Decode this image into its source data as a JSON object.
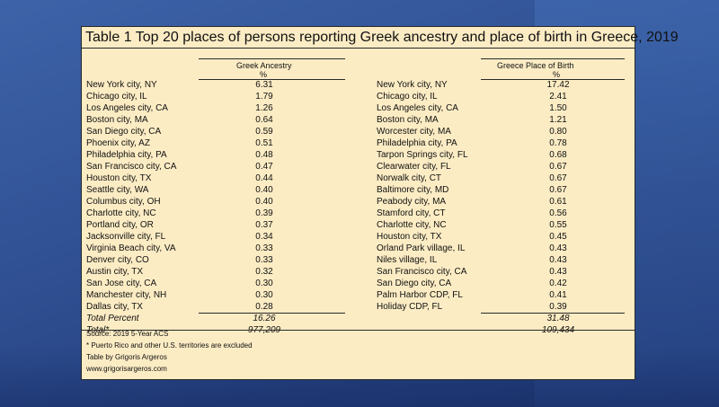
{
  "table": {
    "title": "Table 1   Top 20 places of persons reporting Greek ancestry and place of birth in Greece, 2019",
    "left_header": "Greek Ancestry",
    "left_unit": "%",
    "right_header": "Greece Place of Birth",
    "right_unit": "%",
    "rows": [
      {
        "left_place": "New York city, NY",
        "left_value": "6.31",
        "right_place": "New York city, NY",
        "right_value": "17.42"
      },
      {
        "left_place": "Chicago city, IL",
        "left_value": "1.79",
        "right_place": "Chicago city, IL",
        "right_value": "2.41"
      },
      {
        "left_place": "Los Angeles city, CA",
        "left_value": "1.26",
        "right_place": "Los Angeles city, CA",
        "right_value": "1.50"
      },
      {
        "left_place": "Boston city, MA",
        "left_value": "0.64",
        "right_place": "Boston city, MA",
        "right_value": "1.21"
      },
      {
        "left_place": "San Diego city, CA",
        "left_value": "0.59",
        "right_place": "Worcester city, MA",
        "right_value": "0.80"
      },
      {
        "left_place": "Phoenix city, AZ",
        "left_value": "0.51",
        "right_place": "Philadelphia city, PA",
        "right_value": "0.78"
      },
      {
        "left_place": "Philadelphia city, PA",
        "left_value": "0.48",
        "right_place": "Tarpon Springs city, FL",
        "right_value": "0.68"
      },
      {
        "left_place": "San Francisco city, CA",
        "left_value": "0.47",
        "right_place": "Clearwater city, FL",
        "right_value": "0.67"
      },
      {
        "left_place": "Houston city, TX",
        "left_value": "0.44",
        "right_place": "Norwalk city, CT",
        "right_value": "0.67"
      },
      {
        "left_place": "Seattle city, WA",
        "left_value": "0.40",
        "right_place": "Baltimore city, MD",
        "right_value": "0.67"
      },
      {
        "left_place": "Columbus city, OH",
        "left_value": "0.40",
        "right_place": "Peabody city, MA",
        "right_value": "0.61"
      },
      {
        "left_place": "Charlotte city, NC",
        "left_value": "0.39",
        "right_place": "Stamford city, CT",
        "right_value": "0.56"
      },
      {
        "left_place": "Portland city, OR",
        "left_value": "0.37",
        "right_place": "Charlotte city, NC",
        "right_value": "0.55"
      },
      {
        "left_place": "Jacksonville city, FL",
        "left_value": "0.34",
        "right_place": "Houston city, TX",
        "right_value": "0.45"
      },
      {
        "left_place": "Virginia Beach city, VA",
        "left_value": "0.33",
        "right_place": "Orland Park village, IL",
        "right_value": "0.43"
      },
      {
        "left_place": "Denver city, CO",
        "left_value": "0.33",
        "right_place": "Niles village, IL",
        "right_value": "0.43"
      },
      {
        "left_place": "Austin city, TX",
        "left_value": "0.32",
        "right_place": "San Francisco city, CA",
        "right_value": "0.43"
      },
      {
        "left_place": "San Jose city, CA",
        "left_value": "0.30",
        "right_place": "San Diego city, CA",
        "right_value": "0.42"
      },
      {
        "left_place": "Manchester city, NH",
        "left_value": "0.30",
        "right_place": "Palm Harbor CDP, FL",
        "right_value": "0.41"
      },
      {
        "left_place": "Dallas city, TX",
        "left_value": "0.28",
        "right_place": "Holiday CDP, FL",
        "right_value": "0.39"
      }
    ],
    "total_percent_label": "Total Percent",
    "total_percent_left": "16.26",
    "total_percent_right": "31.48",
    "total_label": "Total*",
    "total_left": "977,209",
    "total_right": "109,434",
    "notes": [
      "Source: 2019 5-Year ACS",
      "* Puerto Rico and other U.S. territories are excluded",
      "Table by Grigoris Argeros",
      "www.grigorisargeros.com"
    ]
  }
}
